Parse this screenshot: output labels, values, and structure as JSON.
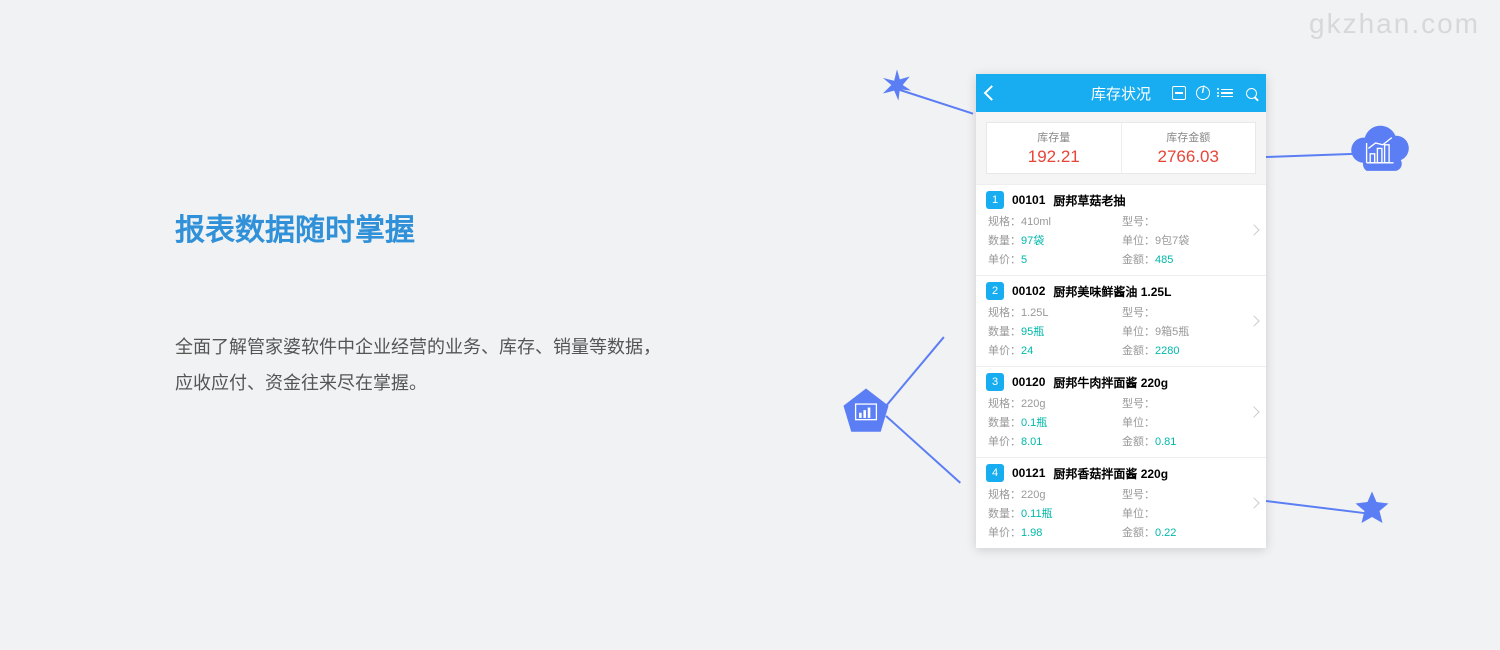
{
  "watermark": "gkzhan.com",
  "left": {
    "heading": "报表数据随时掌握",
    "paragraph": "全面了解管家婆软件中企业经营的业务、库存、销量等数据，应收应付、资金往来尽在掌握。"
  },
  "colors": {
    "accent": "#18acf0",
    "decoration": "#5b7ef4",
    "value_red": "#e74537",
    "value_teal": "#00b8a9",
    "background": "#f1f2f3"
  },
  "phone": {
    "title": "库存状况",
    "summary": {
      "qty_label": "库存量",
      "qty_value": "192.21",
      "amt_label": "库存金额",
      "amt_value": "2766.03"
    },
    "labels": {
      "spec": "规格：",
      "model": "型号：",
      "qty": "数量：",
      "unit": "单位：",
      "price": "单价：",
      "amount": "金额："
    },
    "items": [
      {
        "index": "1",
        "code": "00101",
        "name": "厨邦草菇老抽",
        "spec": "410ml",
        "model": "",
        "qty": "97袋",
        "unit": "9包7袋",
        "price": "5",
        "amount": "485"
      },
      {
        "index": "2",
        "code": "00102",
        "name": "厨邦美味鲜酱油 1.25L",
        "spec": "1.25L",
        "model": "",
        "qty": "95瓶",
        "unit": "9箱5瓶",
        "price": "24",
        "amount": "2280"
      },
      {
        "index": "3",
        "code": "00120",
        "name": "厨邦牛肉拌面酱 220g",
        "spec": "220g",
        "model": "",
        "qty": "0.1瓶",
        "unit": "",
        "price": "8.01",
        "amount": "0.81"
      },
      {
        "index": "4",
        "code": "00121",
        "name": "厨邦香菇拌面酱 220g",
        "spec": "220g",
        "model": "",
        "qty": "0.11瓶",
        "unit": "",
        "price": "1.98",
        "amount": "0.22"
      }
    ]
  }
}
